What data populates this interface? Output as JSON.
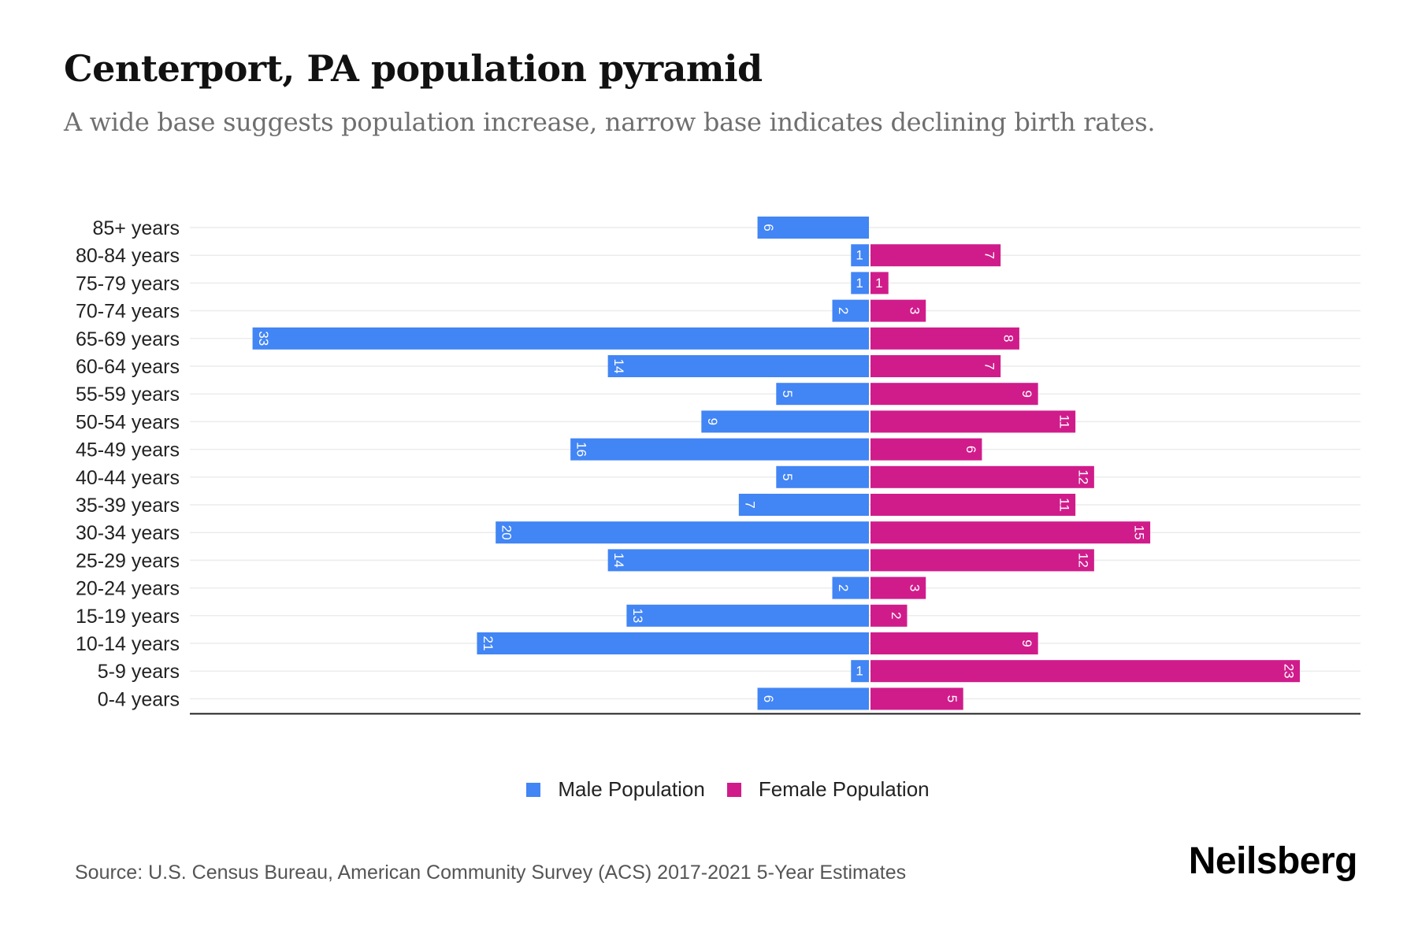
{
  "header": {
    "title": "Centerport, PA population pyramid",
    "subtitle": "A wide base suggests population increase, narrow base indicates declining birth rates."
  },
  "chart_data": {
    "type": "bar",
    "orientation": "horizontal-diverging",
    "title": "Centerport, PA population pyramid",
    "subtitle": "A wide base suggests population increase, narrow base indicates declining birth rates.",
    "categories": [
      "85+ years",
      "80-84 years",
      "75-79 years",
      "70-74 years",
      "65-69 years",
      "60-64 years",
      "55-59 years",
      "50-54 years",
      "45-49 years",
      "40-44 years",
      "35-39 years",
      "30-34 years",
      "25-29 years",
      "20-24 years",
      "15-19 years",
      "10-14 years",
      "5-9 years",
      "0-4 years"
    ],
    "series": [
      {
        "name": "Male Population",
        "color": "#4285f4",
        "values": [
          6,
          1,
          1,
          2,
          33,
          14,
          5,
          9,
          16,
          5,
          7,
          20,
          14,
          2,
          13,
          21,
          1,
          6
        ]
      },
      {
        "name": "Female Population",
        "color": "#d01c8b",
        "values": [
          0,
          7,
          1,
          3,
          8,
          7,
          9,
          11,
          6,
          12,
          11,
          15,
          12,
          3,
          2,
          9,
          23,
          5
        ]
      }
    ],
    "xlabel": "",
    "ylabel": "",
    "xlim": [
      -36,
      26
    ],
    "grid": true,
    "data_labels": true,
    "legend_position": "bottom-center"
  },
  "legend": {
    "items": [
      {
        "label": "Male Population",
        "color": "#4285f4"
      },
      {
        "label": "Female Population",
        "color": "#d01c8b"
      }
    ]
  },
  "footer": {
    "source": "Source: U.S. Census Bureau, American Community Survey (ACS) 2017-2021 5-Year Estimates",
    "brand": "Neilsberg"
  }
}
